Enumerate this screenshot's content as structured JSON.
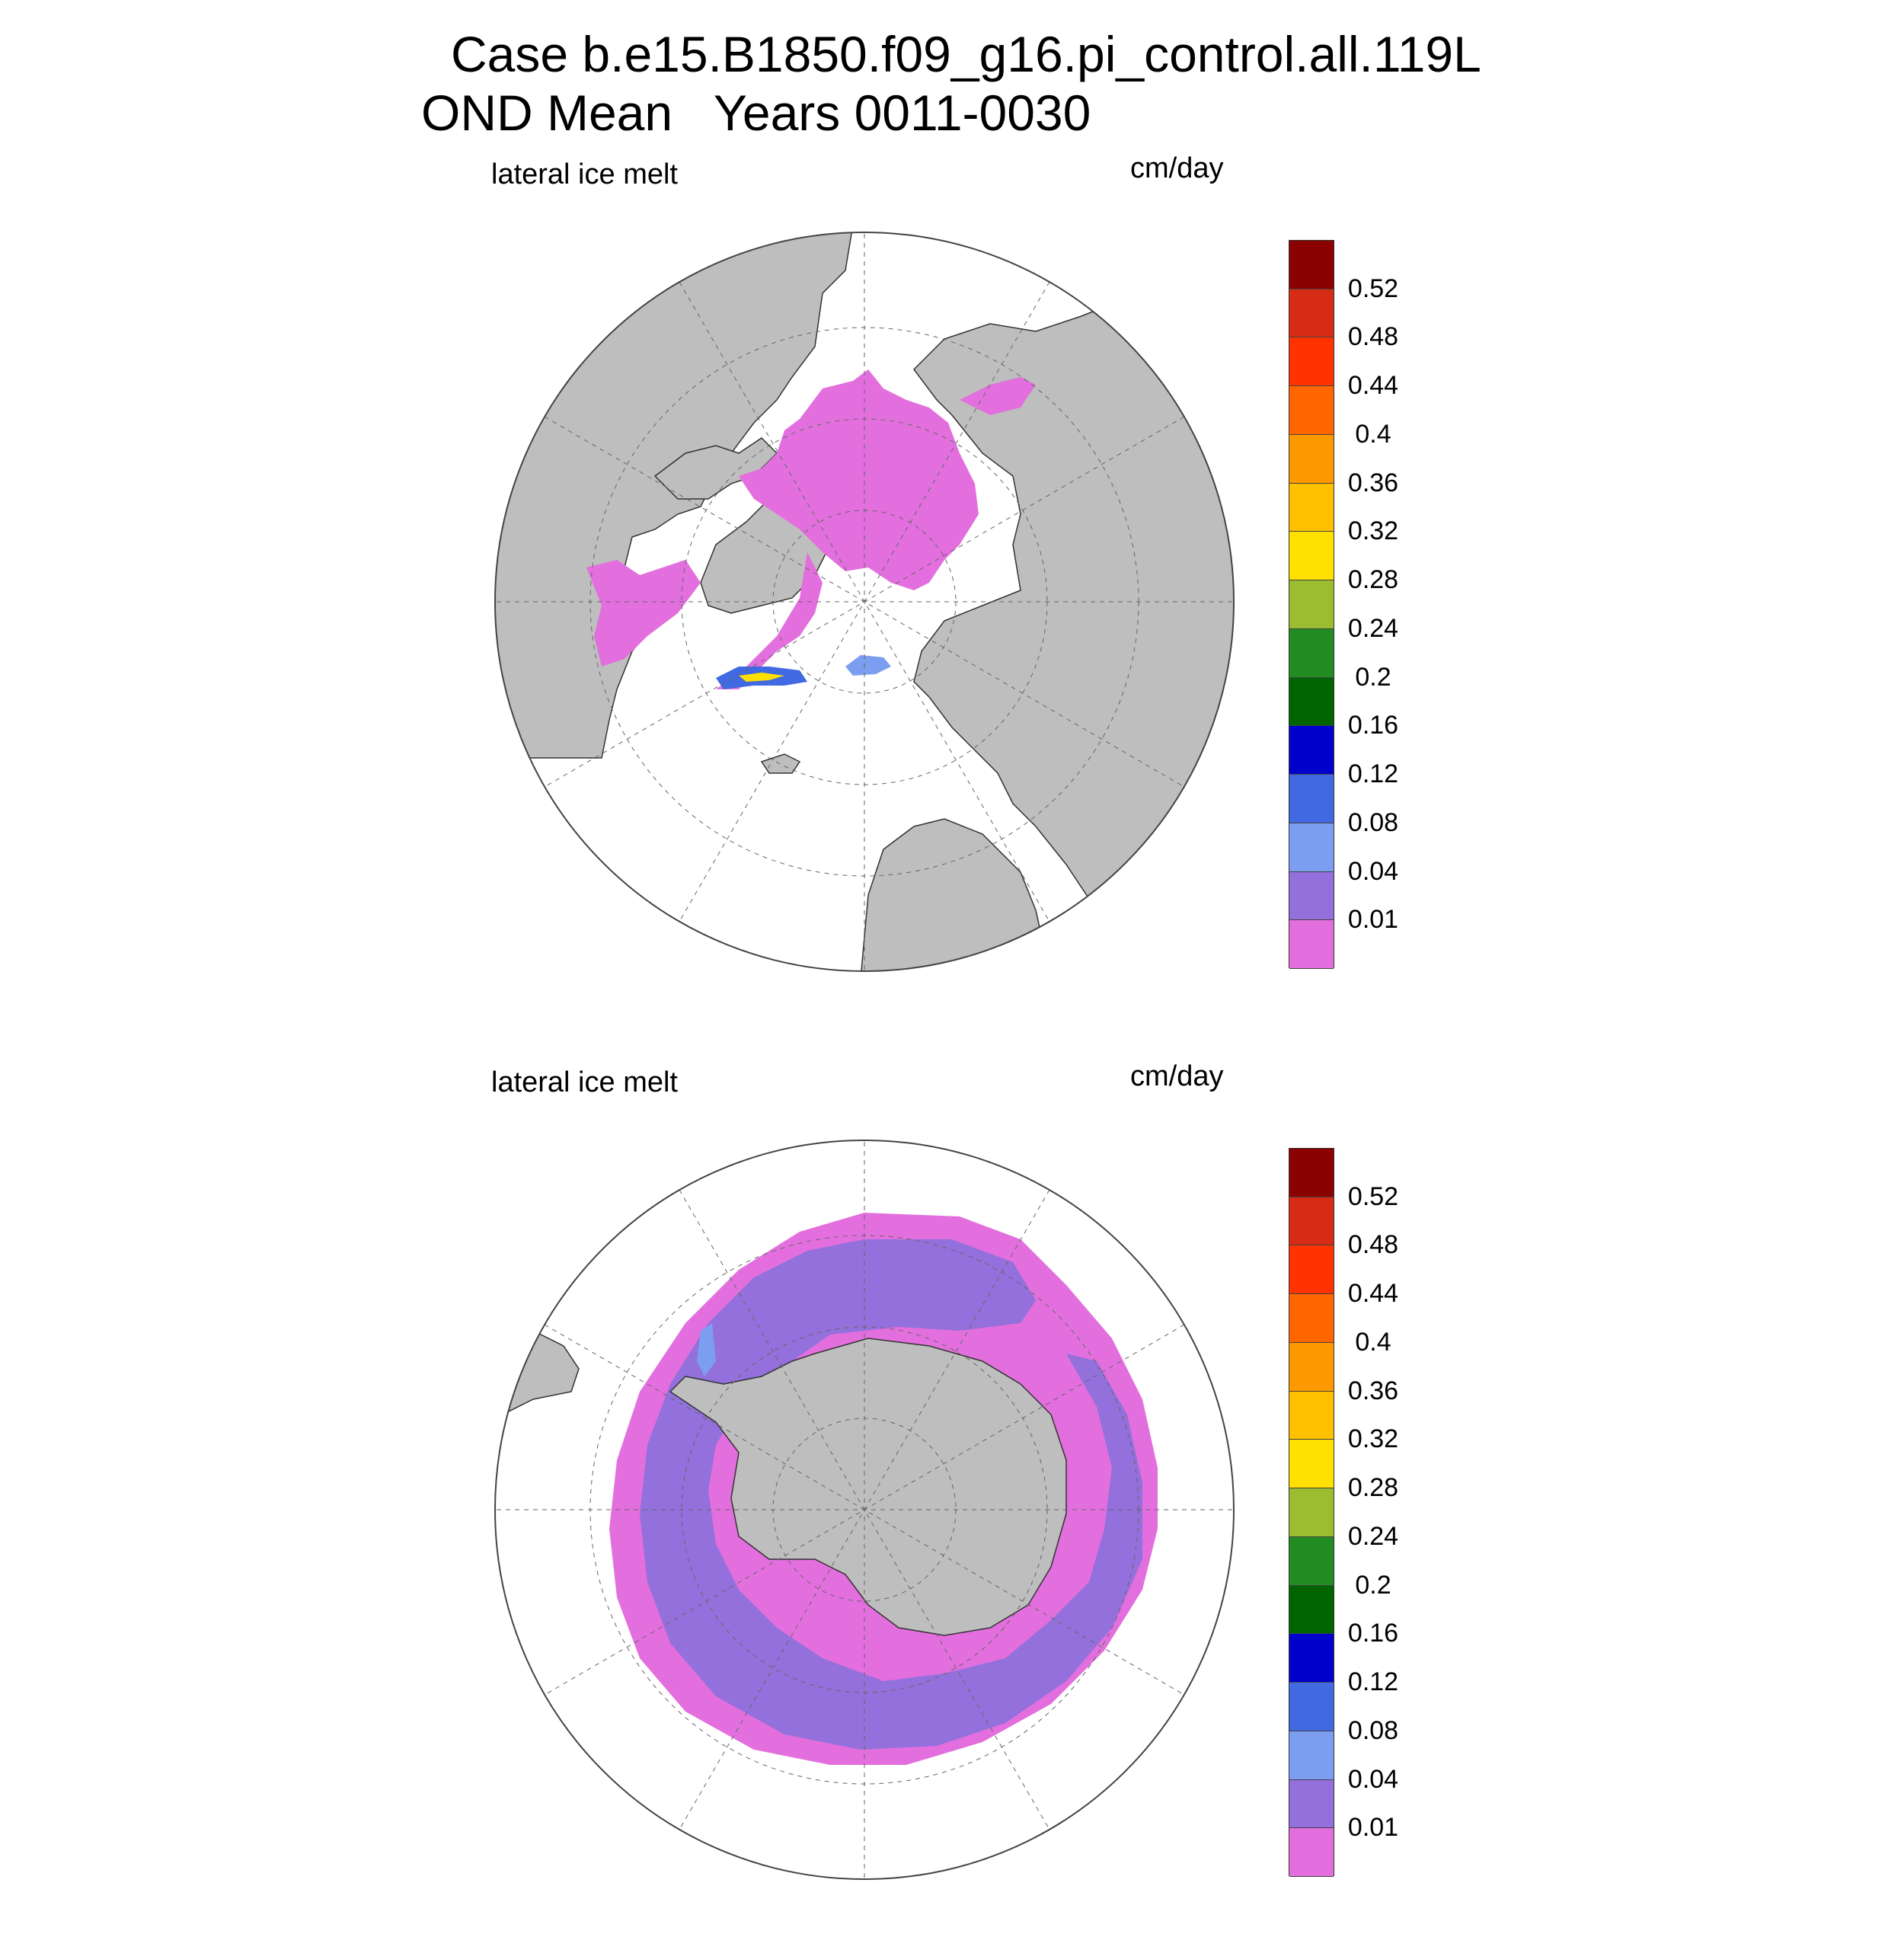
{
  "title_line1": "Case b.e15.B1850.f09_g16.pi_control.all.119L",
  "title_line2": "OND Mean   Years 0011-0030",
  "panels": [
    {
      "id": "north",
      "left_label": "lateral ice melt",
      "right_label": "cm/day"
    },
    {
      "id": "south",
      "left_label": "lateral ice melt",
      "right_label": "cm/day"
    }
  ],
  "colorbar": {
    "labels": [
      "0.52",
      "0.48",
      "0.44",
      "0.4",
      "0.36",
      "0.32",
      "0.28",
      "0.24",
      "0.2",
      "0.16",
      "0.12",
      "0.08",
      "0.04",
      "0.01"
    ],
    "colors": [
      "#8b0000",
      "#d62b14",
      "#ff3300",
      "#ff6600",
      "#ff9900",
      "#ffc000",
      "#ffe000",
      "#9abd32",
      "#228b22",
      "#006400",
      "#0000cd",
      "#4169e1",
      "#7b9ef0",
      "#9370db",
      "#e26fdd"
    ]
  },
  "map_colors": {
    "land": "#bebebe",
    "ocean": "#ffffff",
    "ice_low": "#e26fdd",
    "ice_mid": "#9370db"
  }
}
